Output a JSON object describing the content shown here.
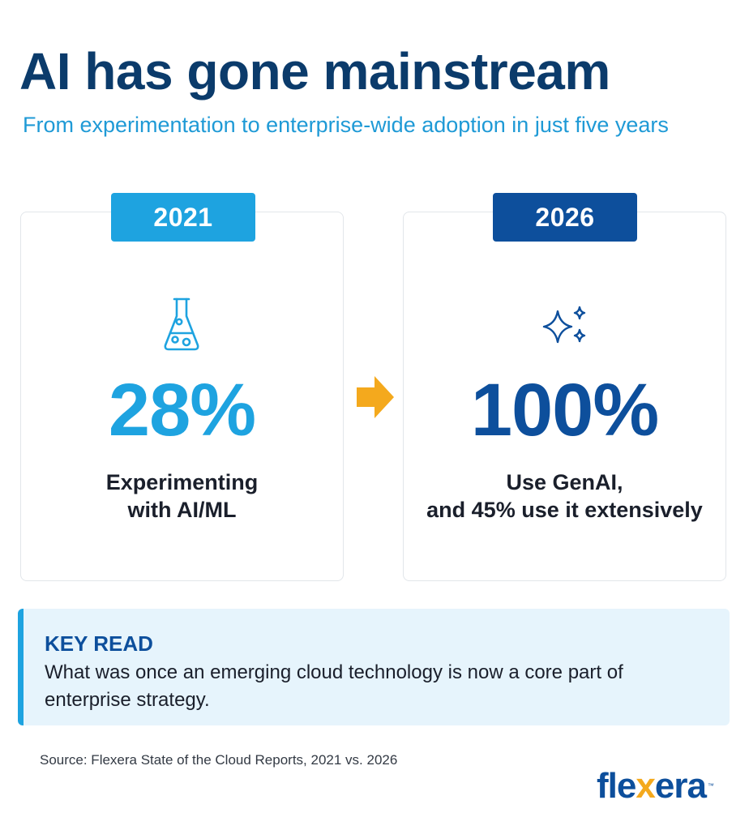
{
  "header": {
    "title": "AI has gone mainstream",
    "subtitle": "From experimentation to enterprise-wide adoption in just five years"
  },
  "cards": [
    {
      "year": "2021",
      "icon": "flask-icon",
      "stat": "28%",
      "label_line1": "Experimenting",
      "label_line2": "with AI/ML",
      "accent": "#1ea3e0"
    },
    {
      "year": "2026",
      "icon": "sparkle-icon",
      "stat": "100%",
      "label_line1": "Use GenAI,",
      "label_line2": "and 45% use it extensively",
      "accent": "#0d4f9c"
    }
  ],
  "transition_icon": "arrow-right-icon",
  "key_read": {
    "title": "KEY READ",
    "text": "What was once an emerging cloud technology is now a core part of enterprise strategy."
  },
  "source": "Source: Flexera State of the Cloud Reports, 2021 vs. 2026",
  "logo": {
    "part1": "fle",
    "part2": "x",
    "part3": "era",
    "tm": "™"
  },
  "colors": {
    "title": "#0b3b6b",
    "subtitle": "#1f9ad6",
    "arrow": "#f4a91d",
    "keyread_bg": "#e6f4fc"
  }
}
